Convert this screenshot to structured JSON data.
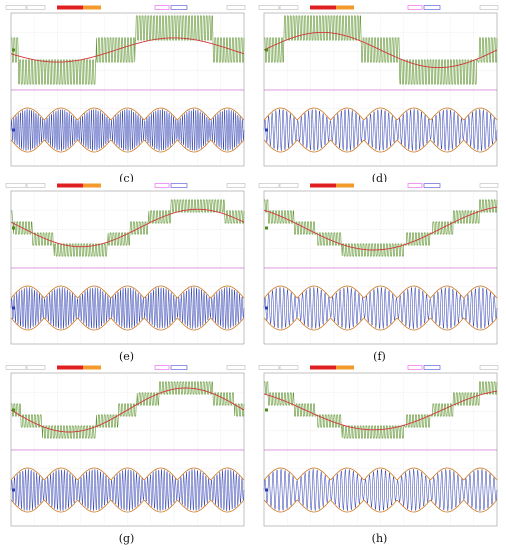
{
  "colors": {
    "grid": "#d6d6d6",
    "frame": "#9a9a9a",
    "green": "#4f8a1c",
    "red": "#d23838",
    "blue": "#2b3bb0",
    "orange": "#d07a22",
    "divider": "#c93cc9",
    "toolbar_red": "#e02020",
    "toolbar_orange": "#f29a2b",
    "toolbar_pink": "#ee55ee",
    "toolbar_blue": "#4a4ad8"
  },
  "panels": [
    {
      "caption": "(c)",
      "green_levels": 3,
      "red_cycles": 1.0,
      "red_phase": 0.55,
      "red_amp": 0.55,
      "env_cycles": 7,
      "carrier_cycles": 105
    },
    {
      "caption": "(d)",
      "green_levels": 3,
      "red_cycles": 1.0,
      "red_phase": 0.0,
      "red_amp": 0.8,
      "env_cycles": 7,
      "carrier_cycles": 64
    },
    {
      "caption": "(e)",
      "green_levels": 5,
      "red_cycles": 1.0,
      "red_phase": 0.45,
      "red_amp": 0.85,
      "env_cycles": 7,
      "carrier_cycles": 92
    },
    {
      "caption": "(f)",
      "green_levels": 5,
      "red_cycles": 0.85,
      "red_phase": 0.35,
      "red_amp": 1.0,
      "env_cycles": 7,
      "carrier_cycles": 62
    },
    {
      "caption": "(g)",
      "green_levels": 5,
      "red_cycles": 1.0,
      "red_phase": 0.5,
      "red_amp": 1.0,
      "env_cycles": 7,
      "carrier_cycles": 84
    },
    {
      "caption": "(h)",
      "green_levels": 5,
      "red_cycles": 0.85,
      "red_phase": 0.35,
      "red_amp": 0.9,
      "env_cycles": 7,
      "carrier_cycles": 58
    }
  ]
}
